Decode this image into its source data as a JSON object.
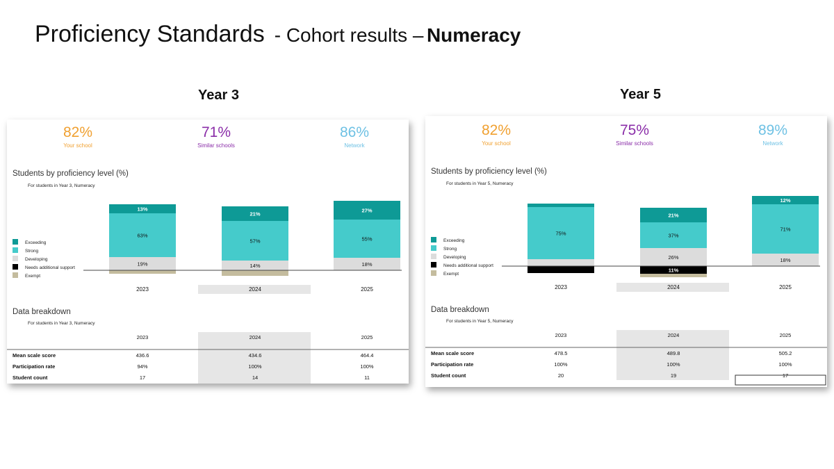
{
  "slide": {
    "title_main": "Proficiency Standards",
    "title_sub": "- Cohort results –",
    "title_bold": "Numeracy"
  },
  "colors": {
    "exceeding": "#0e9a96",
    "strong": "#45cbcb",
    "developing": "#dcdcdc",
    "needs_support": "#000000",
    "exempt": "#c4bc9e",
    "your_school": "#f0a030",
    "similar_schools": "#8a2da8",
    "network": "#6ec1e4"
  },
  "panels": [
    {
      "heading": "Year 3",
      "kpis": [
        {
          "value": "82%",
          "label": "Your school"
        },
        {
          "value": "71%",
          "label": "Similar schools"
        },
        {
          "value": "86%",
          "label": "Network"
        }
      ],
      "chart_title": "Students by proficiency level (%)",
      "chart_subtitle": "For students in Year 3, Numeracy",
      "legend": [
        "Exceeding",
        "Strong",
        "Developing",
        "Needs additional support",
        "Exempt"
      ],
      "breakdown_title": "Data breakdown",
      "breakdown_subtitle": "For students in Year 3, Numeracy",
      "table_headers": [
        "2023",
        "2024",
        "2025"
      ],
      "table_rows": [
        {
          "label": "Mean scale score",
          "values": [
            "436.6",
            "434.6",
            "464.4"
          ]
        },
        {
          "label": "Participation rate",
          "values": [
            "94%",
            "100%",
            "100%"
          ]
        },
        {
          "label": "Student count",
          "values": [
            "17",
            "14",
            "11"
          ]
        }
      ]
    },
    {
      "heading": "Year 5",
      "kpis": [
        {
          "value": "82%",
          "label": "Your school"
        },
        {
          "value": "75%",
          "label": "Similar schools"
        },
        {
          "value": "89%",
          "label": "Network"
        }
      ],
      "chart_title": "Students by proficiency level (%)",
      "chart_subtitle": "For students in Year 5, Numeracy",
      "legend": [
        "Exceeding",
        "Strong",
        "Developing",
        "Needs additional support",
        "Exempt"
      ],
      "breakdown_title": "Data breakdown",
      "breakdown_subtitle": "For students in Year 5, Numeracy",
      "table_headers": [
        "2023",
        "2024",
        "2025"
      ],
      "table_rows": [
        {
          "label": "Mean scale score",
          "values": [
            "478.5",
            "489.8",
            "505.2"
          ]
        },
        {
          "label": "Participation rate",
          "values": [
            "100%",
            "100%",
            "100%"
          ]
        },
        {
          "label": "Student count",
          "values": [
            "20",
            "19",
            "17"
          ]
        }
      ]
    }
  ],
  "chart_data": [
    {
      "type": "bar",
      "stacked": "diverging",
      "title": "Students by proficiency level (%)",
      "subtitle": "For students in Year 3, Numeracy",
      "categories": [
        "2023",
        "2024",
        "2025"
      ],
      "series": [
        {
          "name": "Exceeding",
          "values": [
            13,
            21,
            27
          ]
        },
        {
          "name": "Strong",
          "values": [
            63,
            57,
            55
          ]
        },
        {
          "name": "Developing",
          "values": [
            19,
            14,
            18
          ]
        },
        {
          "name": "Needs additional support",
          "values": [
            0,
            0,
            0
          ]
        },
        {
          "name": "Exempt",
          "values": [
            5,
            8,
            0
          ]
        }
      ],
      "data_labels": [
        [
          "13%",
          "63%",
          "19%",
          "",
          ""
        ],
        [
          "21%",
          "57%",
          "14%",
          "",
          ""
        ],
        [
          "27%",
          "55%",
          "18%",
          "",
          ""
        ]
      ],
      "legend": "left"
    },
    {
      "type": "bar",
      "stacked": "diverging",
      "title": "Students by proficiency level (%)",
      "subtitle": "For students in Year 5, Numeracy",
      "categories": [
        "2023",
        "2024",
        "2025"
      ],
      "series": [
        {
          "name": "Exceeding",
          "values": [
            5,
            21,
            12
          ]
        },
        {
          "name": "Strong",
          "values": [
            75,
            37,
            71
          ]
        },
        {
          "name": "Developing",
          "values": [
            10,
            26,
            18
          ]
        },
        {
          "name": "Needs additional support",
          "values": [
            10,
            11,
            0
          ]
        },
        {
          "name": "Exempt",
          "values": [
            0,
            5,
            0
          ]
        }
      ],
      "data_labels": [
        [
          "",
          "75%",
          "",
          "",
          ""
        ],
        [
          "21%",
          "37%",
          "26%",
          "11%",
          ""
        ],
        [
          "12%",
          "71%",
          "18%",
          "",
          ""
        ]
      ],
      "legend": "left"
    }
  ]
}
